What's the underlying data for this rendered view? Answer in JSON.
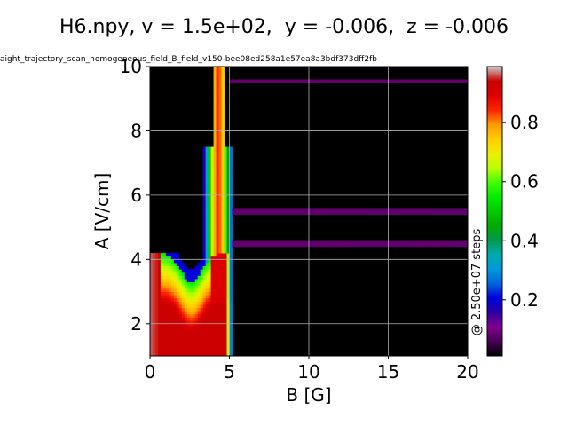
{
  "chart_data": {
    "type": "heatmap",
    "title": "H6.npy, v = 1.5e+02,  y = -0.006,  z = -0.006",
    "subtitle": "aight_trajectory_scan_homogeneous_field_B_field_v150-bee08ed258a1e57ea8a3bdf373dff2fb",
    "xlabel": "B [G]",
    "ylabel": "A [V/cm]",
    "xlim": [
      0,
      20
    ],
    "ylim": [
      1,
      10
    ],
    "xticks": [
      "0",
      "5",
      "10",
      "15",
      "20"
    ],
    "yticks": [
      "2",
      "4",
      "6",
      "8",
      "10"
    ],
    "grid": true,
    "colormap": "nipy_spectral",
    "colorbar": {
      "label": "@ 2.50e+07 steps",
      "range": [
        0.01,
        0.99
      ],
      "ticks": [
        "0.2",
        "0.4",
        "0.6",
        "0.8"
      ]
    },
    "description_regions": {
      "low_B_region_B_range": [
        0,
        5
      ],
      "low_B_region_A_range": [
        1,
        4.2
      ],
      "narrow_peak_B": 4.3,
      "narrow_peak_A_range": [
        1,
        10
      ],
      "background_value": 0.0
    }
  }
}
